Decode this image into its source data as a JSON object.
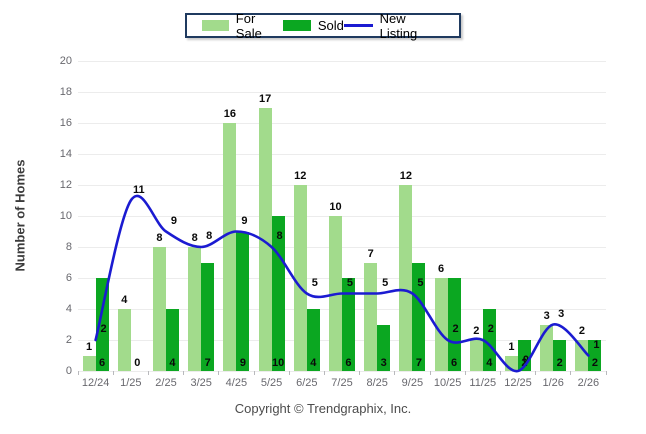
{
  "legend": {
    "items": [
      {
        "label": "For Sale",
        "swatch": "bar",
        "color": "#a2db8c"
      },
      {
        "label": "Sold",
        "swatch": "bar",
        "color": "#0ba721"
      },
      {
        "label": "New Listing",
        "swatch": "line",
        "color": "#1b1bd1"
      }
    ]
  },
  "chart_data": {
    "type": "bar",
    "categories": [
      "12/24",
      "1/25",
      "2/25",
      "3/25",
      "4/25",
      "5/25",
      "6/25",
      "7/25",
      "8/25",
      "9/25",
      "10/25",
      "11/25",
      "12/25",
      "1/26",
      "2/26"
    ],
    "series": [
      {
        "name": "For Sale",
        "type": "bar",
        "color": "#a2db8c",
        "values": [
          1,
          4,
          8,
          8,
          16,
          17,
          12,
          10,
          7,
          12,
          6,
          2,
          1,
          3,
          2
        ]
      },
      {
        "name": "Sold",
        "type": "bar",
        "color": "#0ba721",
        "values": [
          6,
          0,
          4,
          7,
          9,
          10,
          4,
          6,
          3,
          7,
          6,
          4,
          2,
          2,
          2
        ]
      },
      {
        "name": "New Listing",
        "type": "line",
        "color": "#1b1bd1",
        "values": [
          2,
          11,
          9,
          8,
          9,
          8,
          5,
          5,
          5,
          5,
          2,
          2,
          0,
          3,
          1
        ]
      }
    ],
    "title": "",
    "xlabel": "",
    "ylabel": "Number of Homes",
    "ylim": [
      0,
      20
    ],
    "yticks": [
      0,
      2,
      4,
      6,
      8,
      10,
      12,
      14,
      16,
      18,
      20
    ],
    "grid": true,
    "legend_position": "top",
    "data_labels": true
  },
  "footer": {
    "copyright": "Copyright © Trendgraphix, Inc."
  }
}
